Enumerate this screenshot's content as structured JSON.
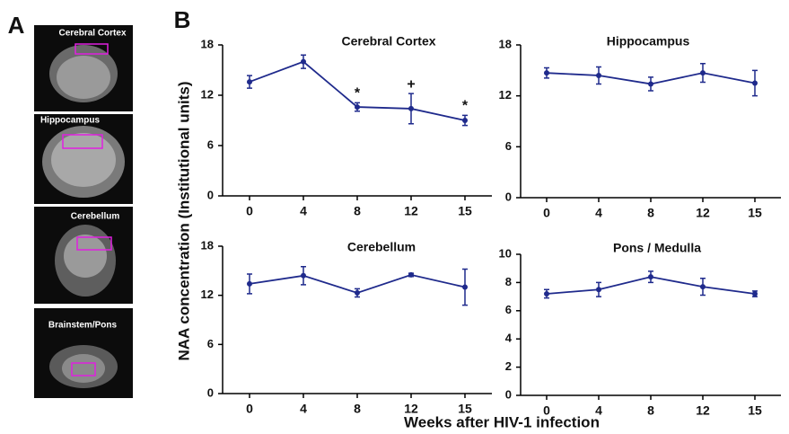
{
  "figure": {
    "panel_a": "A",
    "panel_b": "B",
    "image_labels": [
      "Cerebral Cortex",
      "Hippocampus",
      "Cerebellum",
      "Brainstem/Pons"
    ],
    "ylabel": "NAA concentration (Institutional units)",
    "xlabel": "Weeks after HIV-1 infection"
  },
  "chart_data": [
    {
      "type": "line",
      "title": "Cerebral Cortex",
      "categories": [
        "0",
        "4",
        "8",
        "12",
        "15"
      ],
      "values": [
        13.6,
        16.0,
        10.6,
        10.4,
        9.0
      ],
      "errors": [
        0.75,
        0.8,
        0.5,
        1.8,
        0.6
      ],
      "annotations": [
        null,
        null,
        "*",
        "+",
        "*"
      ],
      "color": "#1f2a8c",
      "ylim": [
        0,
        18
      ],
      "yticks": [
        0,
        6,
        12,
        18
      ]
    },
    {
      "type": "line",
      "title": "Hippocampus",
      "categories": [
        "0",
        "4",
        "8",
        "12",
        "15"
      ],
      "values": [
        14.7,
        14.4,
        13.4,
        14.7,
        13.5
      ],
      "errors": [
        0.6,
        1.0,
        0.8,
        1.1,
        1.5
      ],
      "color": "#1f2a8c",
      "ylim": [
        0,
        18
      ],
      "yticks": [
        0,
        6,
        12,
        18
      ]
    },
    {
      "type": "line",
      "title": "Cerebellum",
      "categories": [
        "0",
        "4",
        "8",
        "12",
        "15"
      ],
      "values": [
        13.4,
        14.4,
        12.3,
        14.5,
        13.0
      ],
      "errors": [
        1.2,
        1.1,
        0.5,
        0.2,
        2.2
      ],
      "color": "#1f2a8c",
      "ylim": [
        0,
        18
      ],
      "yticks": [
        0,
        6,
        12,
        18
      ]
    },
    {
      "type": "line",
      "title": "Pons / Medulla",
      "categories": [
        "0",
        "4",
        "8",
        "12",
        "15"
      ],
      "values": [
        7.2,
        7.5,
        8.4,
        7.7,
        7.2
      ],
      "errors": [
        0.3,
        0.5,
        0.4,
        0.6,
        0.2
      ],
      "color": "#1f2a8c",
      "ylim": [
        0,
        10
      ],
      "yticks": [
        0,
        2,
        4,
        6,
        8,
        10
      ]
    }
  ]
}
